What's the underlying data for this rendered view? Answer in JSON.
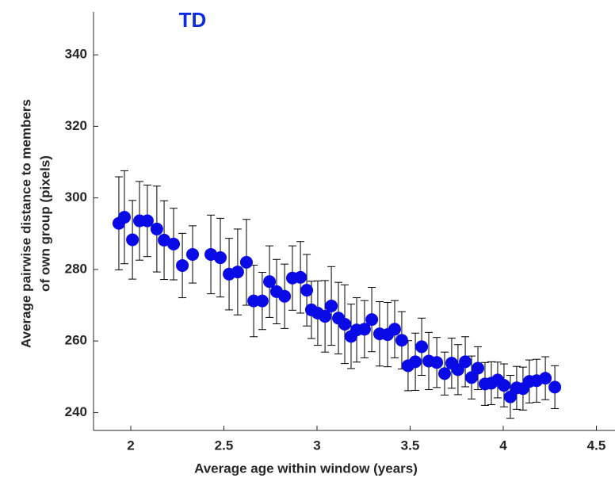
{
  "chart_data": {
    "type": "scatter",
    "title": "TD",
    "title_color": "#0a2be0",
    "xlabel": "Average age within window (years)",
    "ylabel": [
      "Average pairwise distance to members",
      "of own group (pixels)"
    ],
    "color": "#0a0ae6",
    "error_color": "#000000",
    "x": [
      1.936,
      1.966,
      2.009,
      2.047,
      2.089,
      2.14,
      2.179,
      2.23,
      2.277,
      2.332,
      2.43,
      2.481,
      2.528,
      2.574,
      2.621,
      2.66,
      2.706,
      2.745,
      2.783,
      2.826,
      2.868,
      2.911,
      2.945,
      2.97,
      3.004,
      3.043,
      3.077,
      3.115,
      3.149,
      3.183,
      3.213,
      3.255,
      3.294,
      3.336,
      3.379,
      3.417,
      3.455,
      3.489,
      3.528,
      3.562,
      3.6,
      3.643,
      3.685,
      3.723,
      3.757,
      3.796,
      3.83,
      3.864,
      3.902,
      3.936,
      3.97,
      4.004,
      4.038,
      4.072,
      4.106,
      4.14,
      4.179,
      4.226,
      4.277
    ],
    "values": [
      292.9,
      294.6,
      288.3,
      293.6,
      293.6,
      291.3,
      288.2,
      287.1,
      281.1,
      284.2,
      284.2,
      283.3,
      278.7,
      279.3,
      282.0,
      271.2,
      271.2,
      276.6,
      273.8,
      272.5,
      277.6,
      277.8,
      274.2,
      268.7,
      267.8,
      266.9,
      269.8,
      266.4,
      264.7,
      261.3,
      263.1,
      263.3,
      266.0,
      262.0,
      261.8,
      263.3,
      260.2,
      253.1,
      254.2,
      258.4,
      254.4,
      254.0,
      250.9,
      253.8,
      252.0,
      254.2,
      249.8,
      252.4,
      248.0,
      248.2,
      249.1,
      247.6,
      244.4,
      246.9,
      246.7,
      248.7,
      248.9,
      249.6,
      247.1
    ],
    "errors": [
      13,
      13,
      11,
      11,
      10,
      12,
      11,
      10,
      9,
      8,
      11,
      11,
      10,
      12,
      12,
      10,
      8,
      10,
      9,
      9,
      9,
      10,
      10,
      8,
      9,
      10,
      11,
      10,
      11,
      9,
      9,
      8,
      9,
      9,
      9,
      8,
      8,
      7,
      8,
      8,
      8,
      7,
      6,
      7,
      7,
      7,
      6,
      6,
      6,
      6,
      5,
      6,
      6,
      6,
      6,
      6,
      6,
      6,
      6
    ],
    "xlim": [
      1.8,
      4.6
    ],
    "ylim": [
      235,
      352
    ],
    "xticks": [
      2,
      2.5,
      3,
      3.5,
      4,
      4.5
    ],
    "yticks": [
      240,
      260,
      280,
      300,
      320,
      340
    ]
  }
}
